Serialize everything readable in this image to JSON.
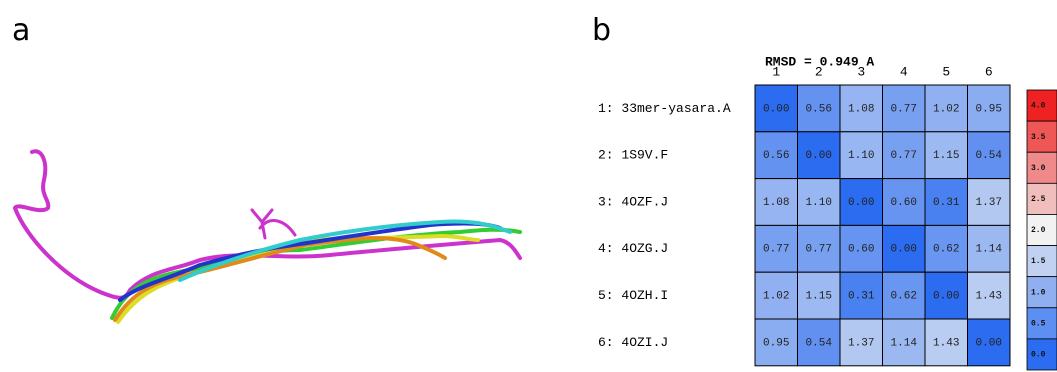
{
  "panels": {
    "a": {
      "label": "a"
    },
    "b": {
      "label": "b",
      "title": "RMSD = 0.949 A",
      "column_headers": [
        "1",
        "2",
        "3",
        "4",
        "5",
        "6"
      ],
      "rows": [
        {
          "label": "1: 33mer-yasara.A",
          "cells": [
            "0.00",
            "0.56",
            "1.08",
            "0.77",
            "1.02",
            "0.95"
          ]
        },
        {
          "label": "2: 1S9V.F",
          "cells": [
            "0.56",
            "0.00",
            "1.10",
            "0.77",
            "1.15",
            "0.54"
          ]
        },
        {
          "label": "3: 4OZF.J",
          "cells": [
            "1.08",
            "1.10",
            "0.00",
            "0.60",
            "0.31",
            "1.37"
          ]
        },
        {
          "label": "4: 4OZG.J",
          "cells": [
            "0.77",
            "0.77",
            "0.60",
            "0.00",
            "0.62",
            "1.14"
          ]
        },
        {
          "label": "5: 4OZH.I",
          "cells": [
            "1.02",
            "1.15",
            "0.31",
            "0.62",
            "0.00",
            "1.43"
          ]
        },
        {
          "label": "6: 4OZI.J",
          "cells": [
            "0.95",
            "0.54",
            "1.37",
            "1.14",
            "1.43",
            "0.00"
          ]
        }
      ],
      "colorbar": [
        "4.0",
        "3.5",
        "3.0",
        "2.5",
        "2.0",
        "1.5",
        "1.0",
        "0.5",
        "0.0"
      ]
    }
  }
}
